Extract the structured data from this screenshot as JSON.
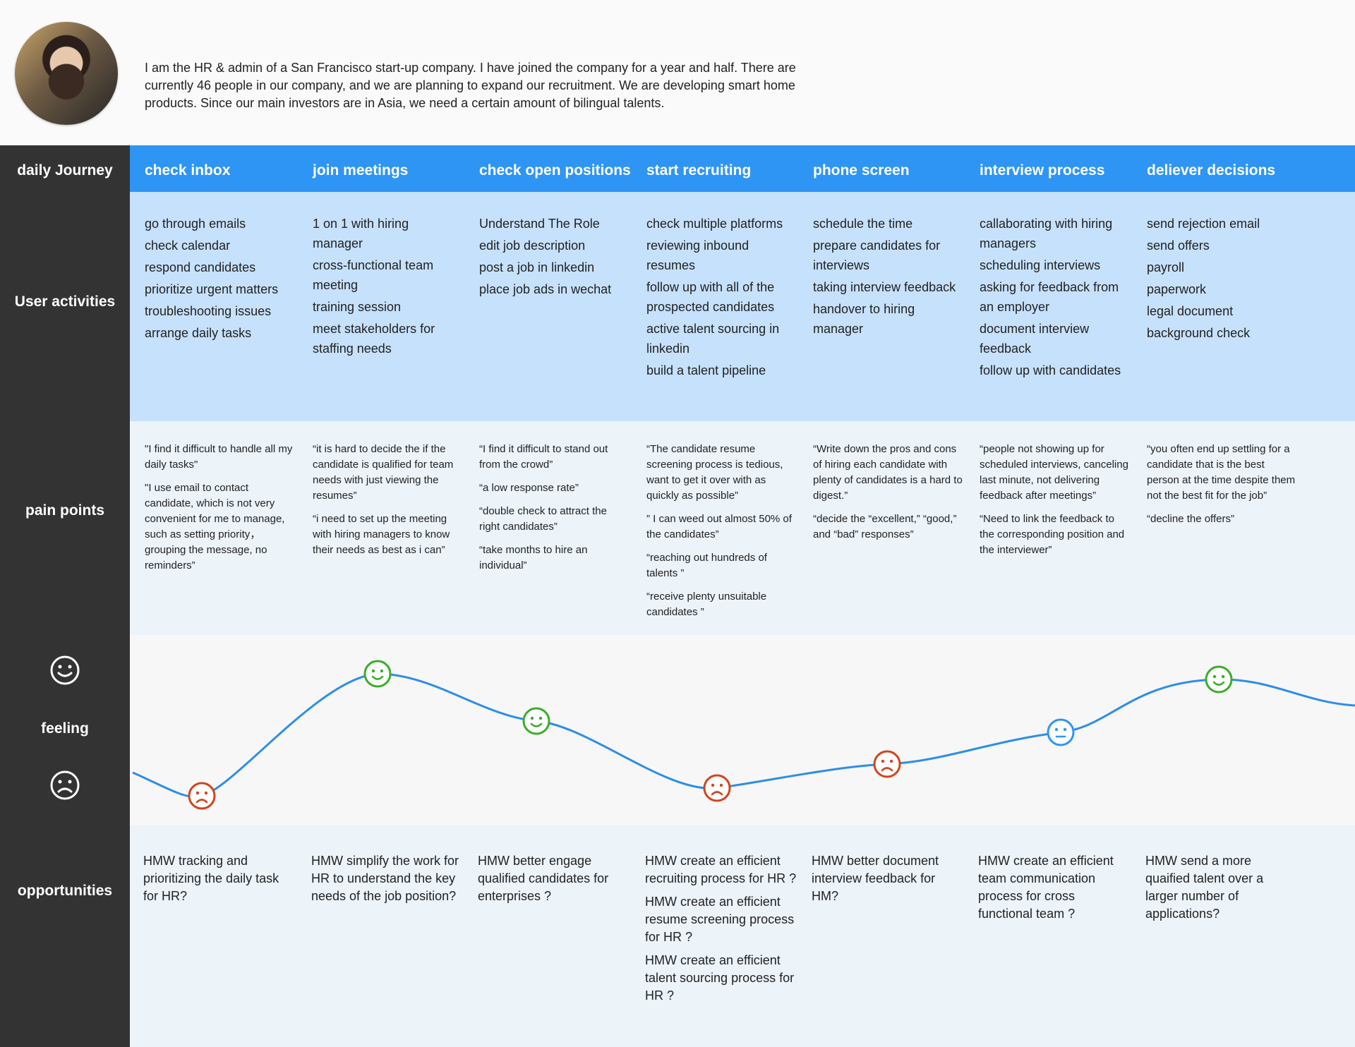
{
  "persona": {
    "intro": "I am the HR & admin of a San Francisco start-up company. I have joined the company for a year and half. There are currently 46 people in our company, and we are planning to expand our recruitment. We are developing smart home products. Since our main investors are in Asia, we need a certain amount of bilingual talents."
  },
  "rows": {
    "journey": "daily Journey",
    "activities": "User activities",
    "pains": "pain points",
    "feeling": "feeling",
    "opportunities": "opportunities"
  },
  "colors": {
    "journey_bar": "#2e95f5",
    "activities_bg": "#c6e1fb",
    "rail": "#333333",
    "curve": "#2e8ee6",
    "happy": "#3aad2a",
    "sad": "#d2441d",
    "neutral": "#2e95f5"
  },
  "stages": [
    {
      "title": "check inbox",
      "activities": [
        "go through emails",
        "check calendar",
        "respond candidates",
        "prioritize urgent matters",
        "troubleshooting issues",
        "arrange daily tasks"
      ],
      "pains": [
        "\"I find it difficult to handle all my daily tasks\"",
        "\"I use email to contact candidate, which is not very convenient for me to manage, such as setting priority， grouping the message, no reminders”"
      ],
      "feeling": "sad",
      "opportunities": [
        "HMW tracking and prioritizing the daily task for HR?"
      ]
    },
    {
      "title": "join meetings",
      "activities": [
        "1 on 1 with hiring manager",
        "cross-functional team meeting",
        "training session",
        "meet stakeholders for staffing needs"
      ],
      "pains": [
        "“it is hard to decide the if the candidate is qualified for team needs with just viewing the resumes”",
        "“i need to set up the meeting with hiring managers to know their needs as best as i can”"
      ],
      "feeling": "happy",
      "opportunities": [
        "HMW simplify the work for HR to understand the key needs of the job position?"
      ]
    },
    {
      "title": "check open positions",
      "activities": [
        "Understand The Role",
        "edit job description",
        "post a job in linkedin",
        "place job ads in wechat"
      ],
      "pains": [
        "“I find it difficult to stand out from the crowd”",
        "“a low response rate”",
        "“double check to attract the right candidates”",
        "“take months to hire an individual”"
      ],
      "feeling": "happy",
      "opportunities": [
        "HMW better engage qualified candidates for enterprises ?"
      ]
    },
    {
      "title": "start recruiting",
      "activities": [
        "check multiple platforms",
        "reviewing inbound resumes",
        "follow up with all of the prospected candidates",
        "active talent sourcing in linkedin",
        "build a talent pipeline"
      ],
      "pains": [
        "“The candidate resume screening process is tedious, want to get it over with as quickly as possible”",
        "” I can weed out almost 50% of the candidates”",
        "“reaching out hundreds of talents ”",
        "“receive plenty unsuitable candidates ”"
      ],
      "feeling": "sad",
      "opportunities": [
        "HMW create an efficient recruiting process for HR ?",
        "HMW create an efficient resume screening process for HR ?",
        "HMW create an efficient talent sourcing process for HR ?"
      ]
    },
    {
      "title": "phone screen",
      "activities": [
        "schedule the time",
        "prepare candidates for interviews",
        "taking interview feedback",
        "handover to hiring manager"
      ],
      "pains": [
        "“Write down the pros and cons of hiring each candidate with plenty of candidates is a hard to digest.”",
        "“decide the “excellent,” “good,” and “bad” responses”"
      ],
      "feeling": "sad",
      "opportunities": [
        "HMW better document interview feedback for HM?"
      ]
    },
    {
      "title": "interview process",
      "activities": [
        "callaborating with hiring managers",
        "scheduling interviews",
        "asking for feedback from an employer",
        "document interview feedback",
        "follow up with candidates"
      ],
      "pains": [
        "“people not showing up for scheduled interviews, canceling last minute, not delivering feedback after meetings”",
        "“Need to link the feedback to the corresponding position and the interviewer”"
      ],
      "feeling": "neutral",
      "opportunities": [
        "HMW create an efficient team communication process for cross functional team ?"
      ]
    },
    {
      "title": "deliever decisions",
      "activities": [
        "send rejection email",
        "send offers",
        "payroll",
        "paperwork",
        "legal document",
        "background check"
      ],
      "pains": [
        "“you often end up settling for a candidate that is the best person at the time despite them not the best fit for the job”",
        "“decline the offers”"
      ],
      "feeling": "happy",
      "opportunities": [
        "HMW send a more quaified talent over a larger number of applications?"
      ]
    }
  ]
}
